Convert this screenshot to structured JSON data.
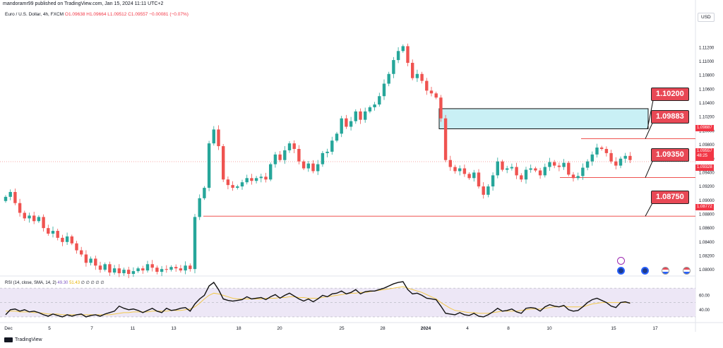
{
  "header": {
    "published": "mandoramr99 published on TradingView.com, Jan 15, 2024 11:11 UTC+2"
  },
  "symbol_line": {
    "title": "Euro / U.S. Dollar, 4h, FXCM",
    "O": "O1.09638",
    "H": "H1.09664",
    "L": "L1.09512",
    "C": "C1.09557",
    "change": "−0.00081 (−0.07%)"
  },
  "currency": "USD",
  "rsi_legend": {
    "label": "RSI (14, close, SMA, 14, 2)",
    "rsi_value": "49.30",
    "sma_value": "51.43",
    "placeholders": "∅ ∅ ∅ ∅ ∅"
  },
  "watermark": "TradingView",
  "price_tags": {
    "current": "1.09557",
    "countdown": "48:25",
    "resistance": "1.09887",
    "support": "1.09328",
    "low_line": "1.08772"
  },
  "level_labels": [
    "1.10200",
    "1.09883",
    "1.09350",
    "1.08750"
  ],
  "colors": {
    "up": "#26a69a",
    "down": "#ef5350",
    "label_red": "#e84855",
    "zone_fill": "#c9f0f5",
    "rsi_line": "#111111",
    "rsi_sma": "#f2c94c",
    "rsi_band": "#ede7f6"
  },
  "icons": [
    "lightning-icon",
    "event-icon",
    "us-flag-icon",
    "us-flag-icon",
    "us-flag-icon"
  ],
  "chart_data": {
    "type": "candlestick",
    "price_axis_ticks": [
      "1.11200",
      "1.11000",
      "1.10800",
      "1.10600",
      "1.10400",
      "1.10200",
      "1.10000",
      "1.09800",
      "1.09600",
      "1.09400",
      "1.09200",
      "1.09000",
      "1.08800",
      "1.08600",
      "1.08400",
      "1.08200",
      "1.08000"
    ],
    "time_axis_ticks": [
      "Dec",
      "5",
      "7",
      "11",
      "13",
      "18",
      "20",
      "25",
      "28",
      "2024",
      "4",
      "8",
      "10",
      "15",
      "17"
    ],
    "rsi_axis_ticks": [
      "60.00",
      "40.00"
    ],
    "ylim": [
      1.0791,
      1.1158
    ],
    "zone": [
      1.1003,
      1.1032
    ],
    "levels": {
      "resistance": 1.09887,
      "support": 1.09328,
      "low": 1.08772
    },
    "anchor": {
      "start": 0.0,
      "step": 6.7,
      "x0": 8
    },
    "closes": [
      1.0905,
      1.0912,
      1.0896,
      1.0882,
      1.0874,
      1.0878,
      1.087,
      1.0876,
      1.086,
      1.0852,
      1.0856,
      1.0846,
      1.084,
      1.0848,
      1.0838,
      1.0828,
      1.0822,
      1.081,
      1.0816,
      1.0806,
      1.08,
      1.0808,
      1.0796,
      1.0802,
      1.0795,
      1.08,
      1.0794,
      1.0798,
      1.0802,
      1.0799,
      1.0808,
      1.0803,
      1.0797,
      1.0801,
      1.08,
      1.0804,
      1.0802,
      1.0799,
      1.0806,
      1.0801,
      1.0876,
      1.0903,
      1.0918,
      1.0982,
      1.1002,
      1.0978,
      1.093,
      1.0922,
      1.0918,
      1.092,
      1.0926,
      1.0932,
      1.0928,
      1.0932,
      1.0934,
      1.093,
      1.0952,
      1.0966,
      1.0958,
      1.0972,
      1.0982,
      1.0974,
      1.0956,
      1.0946,
      1.0953,
      1.0942,
      1.0952,
      1.0968,
      1.097,
      1.0986,
      1.0996,
      1.1018,
      1.1006,
      1.1014,
      1.1028,
      1.1016,
      1.1028,
      1.1034,
      1.1038,
      1.105,
      1.1068,
      1.1082,
      1.1102,
      1.1115,
      1.1122,
      1.1098,
      1.1076,
      1.1082,
      1.1072,
      1.1058,
      1.1054,
      1.1048,
      1.1018,
      1.0958,
      1.0948,
      1.0942,
      1.0946,
      1.0938,
      1.0932,
      1.094,
      1.092,
      1.0908,
      1.092,
      1.0936,
      1.0956,
      1.0944,
      1.0946,
      1.0948,
      1.0936,
      1.093,
      1.0944,
      1.0946,
      1.0943,
      1.0936,
      1.0948,
      1.0955,
      1.095,
      1.0948,
      1.0954,
      1.0937,
      1.0932,
      1.0935,
      1.0947,
      1.0956,
      1.0966,
      1.0976,
      1.0974,
      1.0968,
      1.0956,
      1.095,
      1.096,
      1.0964,
      1.0958
    ],
    "rsi": [
      33,
      40,
      41,
      38,
      40,
      37,
      38,
      36,
      33,
      31,
      34,
      32,
      30,
      33,
      31,
      33,
      34,
      30,
      32,
      33,
      31,
      34,
      36,
      38,
      45,
      42,
      40,
      41,
      39,
      36,
      39,
      42,
      38,
      36,
      42,
      39,
      40,
      42,
      43,
      38,
      48,
      55,
      60,
      73,
      78,
      68,
      55,
      53,
      52,
      53,
      54,
      58,
      55,
      56,
      57,
      54,
      58,
      61,
      56,
      60,
      63,
      59,
      55,
      52,
      55,
      51,
      55,
      60,
      58,
      62,
      63,
      66,
      62,
      64,
      68,
      62,
      65,
      66,
      66,
      68,
      70,
      73,
      76,
      78,
      79,
      68,
      62,
      63,
      60,
      56,
      55,
      54,
      45,
      35,
      34,
      33,
      36,
      33,
      32,
      35,
      31,
      30,
      33,
      37,
      42,
      38,
      39,
      41,
      37,
      35,
      42,
      43,
      42,
      38,
      44,
      47,
      45,
      44,
      46,
      40,
      38,
      39,
      44,
      50,
      54,
      56,
      53,
      50,
      45,
      43,
      50,
      51,
      49
    ],
    "rsi_sma": [
      38,
      38,
      38,
      37,
      37,
      37,
      36,
      36,
      35,
      34,
      34,
      34,
      33,
      33,
      33,
      33,
      33,
      33,
      33,
      33,
      33,
      33,
      33,
      34,
      35,
      36,
      36,
      37,
      37,
      37,
      37,
      38,
      38,
      38,
      38,
      39,
      39,
      39,
      40,
      41,
      44,
      49,
      55,
      60,
      63,
      62,
      60,
      58,
      56,
      55,
      55,
      55,
      55,
      55,
      55,
      56,
      56,
      56,
      57,
      57,
      58,
      58,
      57,
      57,
      56,
      56,
      56,
      57,
      58,
      59,
      60,
      61,
      62,
      63,
      63,
      64,
      64,
      65,
      66,
      67,
      68,
      69,
      70,
      71,
      72,
      70,
      68,
      66,
      64,
      61,
      58,
      55,
      50,
      46,
      42,
      39,
      38,
      37,
      36,
      36,
      35,
      35,
      35,
      36,
      37,
      38,
      38,
      38,
      38,
      39,
      40,
      41,
      41,
      41,
      42,
      43,
      44,
      44,
      45,
      44,
      44,
      44,
      44,
      46,
      48,
      49,
      50,
      50,
      50,
      50,
      50,
      50,
      50
    ]
  }
}
